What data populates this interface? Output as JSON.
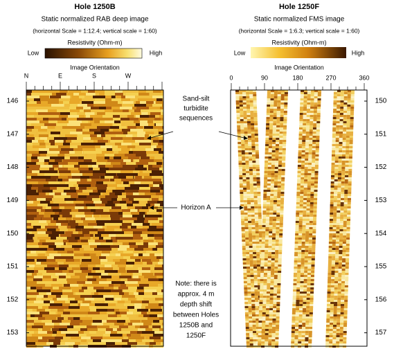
{
  "left": {
    "title": "Hole 1250B",
    "subtitle": "Static normalized RAB deep image",
    "scale": "(horizontal Scale = 1:12.4; vertical scale = 1:60)",
    "colorbar": {
      "label": "Resistivity (Ohm-m)",
      "low": "Low",
      "high": "High"
    },
    "orientation": {
      "label": "Image Orientation",
      "ticks": [
        "N",
        "E",
        "S",
        "W"
      ]
    },
    "depths": [
      146,
      147,
      148,
      149,
      150,
      151,
      152,
      153
    ]
  },
  "right": {
    "title": "Hole 1250F",
    "subtitle": "Static normalized FMS image",
    "scale": "(horizontal Scale = 1:6.3; vertical scale = 1:60)",
    "colorbar": {
      "label": "Resistivity (Ohm-m)",
      "low": "Low",
      "high": "High"
    },
    "orientation": {
      "label": "Image Orientation",
      "ticks": [
        0,
        90,
        180,
        270,
        360
      ]
    },
    "depths": [
      150,
      151,
      152,
      153,
      154,
      155,
      156,
      157
    ]
  },
  "annotations": {
    "turbidite": [
      "Sand-silt",
      "turbidite",
      "sequences"
    ],
    "horizon": "Horizon A",
    "note": [
      "Note: there is",
      "approx. 4 m",
      "depth shift",
      "between Holes",
      "1250B and",
      "1250F"
    ]
  }
}
